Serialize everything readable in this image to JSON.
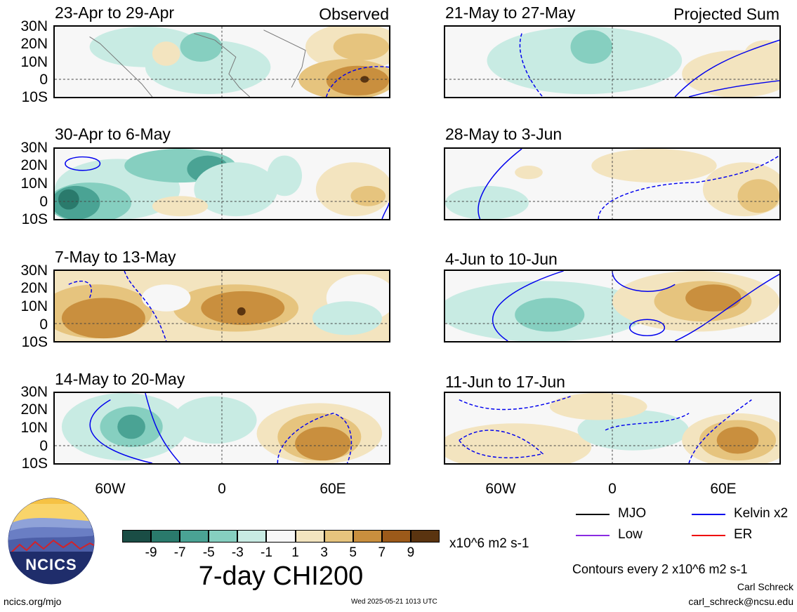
{
  "panels": [
    {
      "title": "23-Apr to 29-Apr",
      "corner": "Observed"
    },
    {
      "title": "30-Apr to 6-May",
      "corner": ""
    },
    {
      "title": "7-May to 13-May",
      "corner": ""
    },
    {
      "title": "14-May to 20-May",
      "corner": ""
    },
    {
      "title": "21-May to 27-May",
      "corner": "Projected Sum"
    },
    {
      "title": "28-May to 3-Jun",
      "corner": ""
    },
    {
      "title": "4-Jun to 10-Jun",
      "corner": ""
    },
    {
      "title": "11-Jun to 17-Jun",
      "corner": ""
    }
  ],
  "lat_labels": [
    "30N",
    "20N",
    "10N",
    "0",
    "10S"
  ],
  "lon_labels": [
    "60W",
    "0",
    "60E"
  ],
  "colorbar": {
    "colors": [
      "#1a4d45",
      "#2a7a6c",
      "#4aa394",
      "#86cfc0",
      "#c8ebe3",
      "#f7f7f7",
      "#f3e4bf",
      "#e6c47e",
      "#c98f3e",
      "#9c5a1a",
      "#5a3410"
    ],
    "ticks": [
      "-9",
      "-7",
      "-5",
      "-3",
      "-1",
      "1",
      "3",
      "5",
      "7",
      "9"
    ],
    "units": "x10^6 m2 s-1",
    "title": "7-day CHI200"
  },
  "legend": [
    {
      "label": "MJO",
      "color": "#000000",
      "style": "solid"
    },
    {
      "label": "Kelvin x2",
      "color": "#0000ee",
      "style": "solid"
    },
    {
      "label": "Low",
      "color": "#8a2be2",
      "style": "solid"
    },
    {
      "label": "ER",
      "color": "#ee0000",
      "style": "solid"
    }
  ],
  "contours_note": "Contours every 2 x10^6 m2 s-1",
  "logo_text": "NCICS",
  "url": "ncics.org/mjo",
  "timestamp": "Wed 2025-05-21 1013 UTC",
  "author": "Carl Schreck",
  "email": "carl_schreck@ncsu.edu"
}
